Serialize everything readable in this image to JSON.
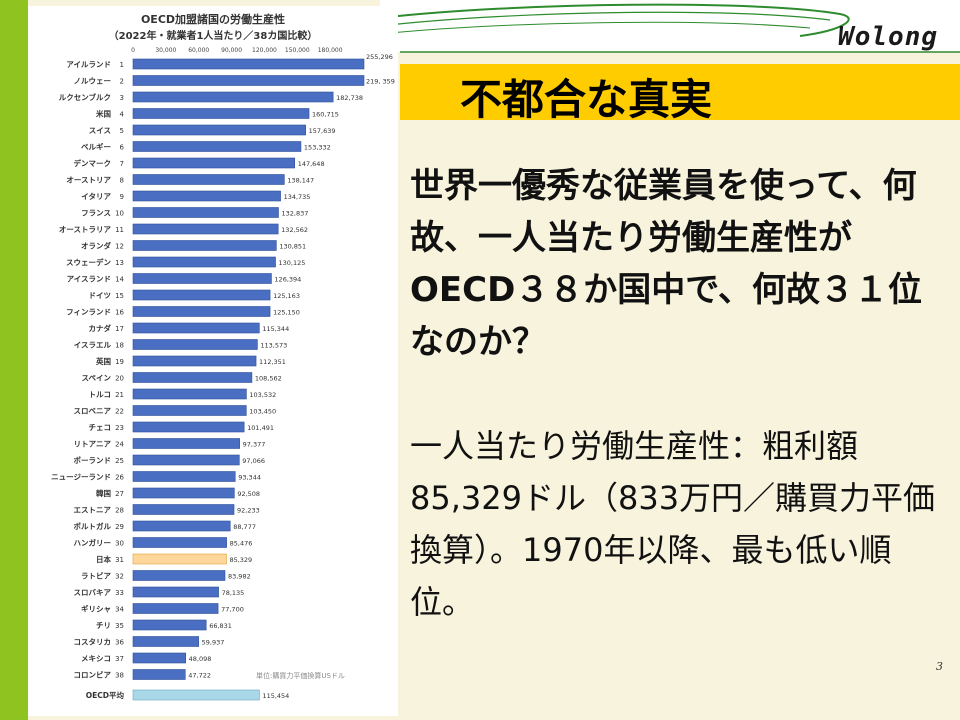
{
  "slide": {
    "logo": "Wolong",
    "title": "不都合な真実",
    "body_line1": "世界一優秀な従業員を使って、何故、一人当たり労働生産性がOECD３８か国中で、何故３１位なのか？",
    "body_line2": "一人当たり労働生産性：粗利額85,329ドル（833万円／購買力平価換算）。1970年以降、最も低い順位。",
    "page_number": "3",
    "colors": {
      "title_bar": "#ffcc00",
      "left_stripe": "#8fc31f",
      "bar": "#4a6fc2",
      "highlight_bar": "#ffd79a",
      "average_bar": "#a9d8e8"
    }
  },
  "chart_data": {
    "type": "bar",
    "orientation": "horizontal",
    "title": "OECD加盟諸国の労働生産性",
    "subtitle": "（2022年・就業者1人当たり／38カ国比較）",
    "source_note": "単位:購買力平価換算USドル",
    "x_ticks": [
      "0",
      "30,000",
      "60,000",
      "90,000",
      "120,000",
      "150,000",
      "180,000"
    ],
    "xlim": [
      0,
      210000
    ],
    "categories": [
      {
        "name": "アイルランド",
        "rank": "1",
        "value": 255296,
        "label": "255,296"
      },
      {
        "name": "ノルウェー",
        "rank": "2",
        "value": 219359,
        "label": "219, 359"
      },
      {
        "name": "ルクセンブルク",
        "rank": "3",
        "value": 182738,
        "label": "182,738"
      },
      {
        "name": "米国",
        "rank": "4",
        "value": 160715,
        "label": "160,715"
      },
      {
        "name": "スイス",
        "rank": "5",
        "value": 157639,
        "label": "157,639"
      },
      {
        "name": "ベルギー",
        "rank": "6",
        "value": 153332,
        "label": "153,332"
      },
      {
        "name": "デンマーク",
        "rank": "7",
        "value": 147648,
        "label": "147,648"
      },
      {
        "name": "オーストリア",
        "rank": "8",
        "value": 138147,
        "label": "138,147"
      },
      {
        "name": "イタリア",
        "rank": "9",
        "value": 134735,
        "label": "134,735"
      },
      {
        "name": "フランス",
        "rank": "10",
        "value": 132837,
        "label": "132,837"
      },
      {
        "name": "オーストラリア",
        "rank": "11",
        "value": 132562,
        "label": "132,562"
      },
      {
        "name": "オランダ",
        "rank": "12",
        "value": 130851,
        "label": "130,851"
      },
      {
        "name": "スウェーデン",
        "rank": "13",
        "value": 130125,
        "label": "130,125"
      },
      {
        "name": "アイスランド",
        "rank": "14",
        "value": 126394,
        "label": "126,394"
      },
      {
        "name": "ドイツ",
        "rank": "15",
        "value": 125163,
        "label": "125,163"
      },
      {
        "name": "フィンランド",
        "rank": "16",
        "value": 125150,
        "label": "125,150"
      },
      {
        "name": "カナダ",
        "rank": "17",
        "value": 115344,
        "label": "115,344"
      },
      {
        "name": "イスラエル",
        "rank": "18",
        "value": 113573,
        "label": "113,573"
      },
      {
        "name": "英国",
        "rank": "19",
        "value": 112351,
        "label": "112,351"
      },
      {
        "name": "スペイン",
        "rank": "20",
        "value": 108562,
        "label": "108,562"
      },
      {
        "name": "トルコ",
        "rank": "21",
        "value": 103532,
        "label": "103,532"
      },
      {
        "name": "スロベニア",
        "rank": "22",
        "value": 103450,
        "label": "103,450"
      },
      {
        "name": "チェコ",
        "rank": "23",
        "value": 101491,
        "label": "101,491"
      },
      {
        "name": "リトアニア",
        "rank": "24",
        "value": 97377,
        "label": "97,377"
      },
      {
        "name": "ポーランド",
        "rank": "25",
        "value": 97066,
        "label": "97,066"
      },
      {
        "name": "ニュージーランド",
        "rank": "26",
        "value": 93344,
        "label": "93,344"
      },
      {
        "name": "韓国",
        "rank": "27",
        "value": 92508,
        "label": "92,508"
      },
      {
        "name": "エストニア",
        "rank": "28",
        "value": 92233,
        "label": "92,233"
      },
      {
        "name": "ポルトガル",
        "rank": "29",
        "value": 88777,
        "label": "88,777"
      },
      {
        "name": "ハンガリー",
        "rank": "30",
        "value": 85476,
        "label": "85,476"
      },
      {
        "name": "日本",
        "rank": "31",
        "value": 85329,
        "label": "85,329",
        "highlight": true
      },
      {
        "name": "ラトビア",
        "rank": "32",
        "value": 83982,
        "label": "83,982"
      },
      {
        "name": "スロバキア",
        "rank": "33",
        "value": 78135,
        "label": "78,135"
      },
      {
        "name": "ギリシャ",
        "rank": "34",
        "value": 77700,
        "label": "77,700"
      },
      {
        "name": "チリ",
        "rank": "35",
        "value": 66831,
        "label": "66,831"
      },
      {
        "name": "コスタリカ",
        "rank": "36",
        "value": 59937,
        "label": "59,937"
      },
      {
        "name": "メキシコ",
        "rank": "37",
        "value": 48098,
        "label": "48,098"
      },
      {
        "name": "コロンビア",
        "rank": "38",
        "value": 47722,
        "label": "47,722"
      },
      {
        "name": "OECD平均",
        "rank": "",
        "value": 115454,
        "label": "115,454",
        "average": true
      }
    ]
  }
}
